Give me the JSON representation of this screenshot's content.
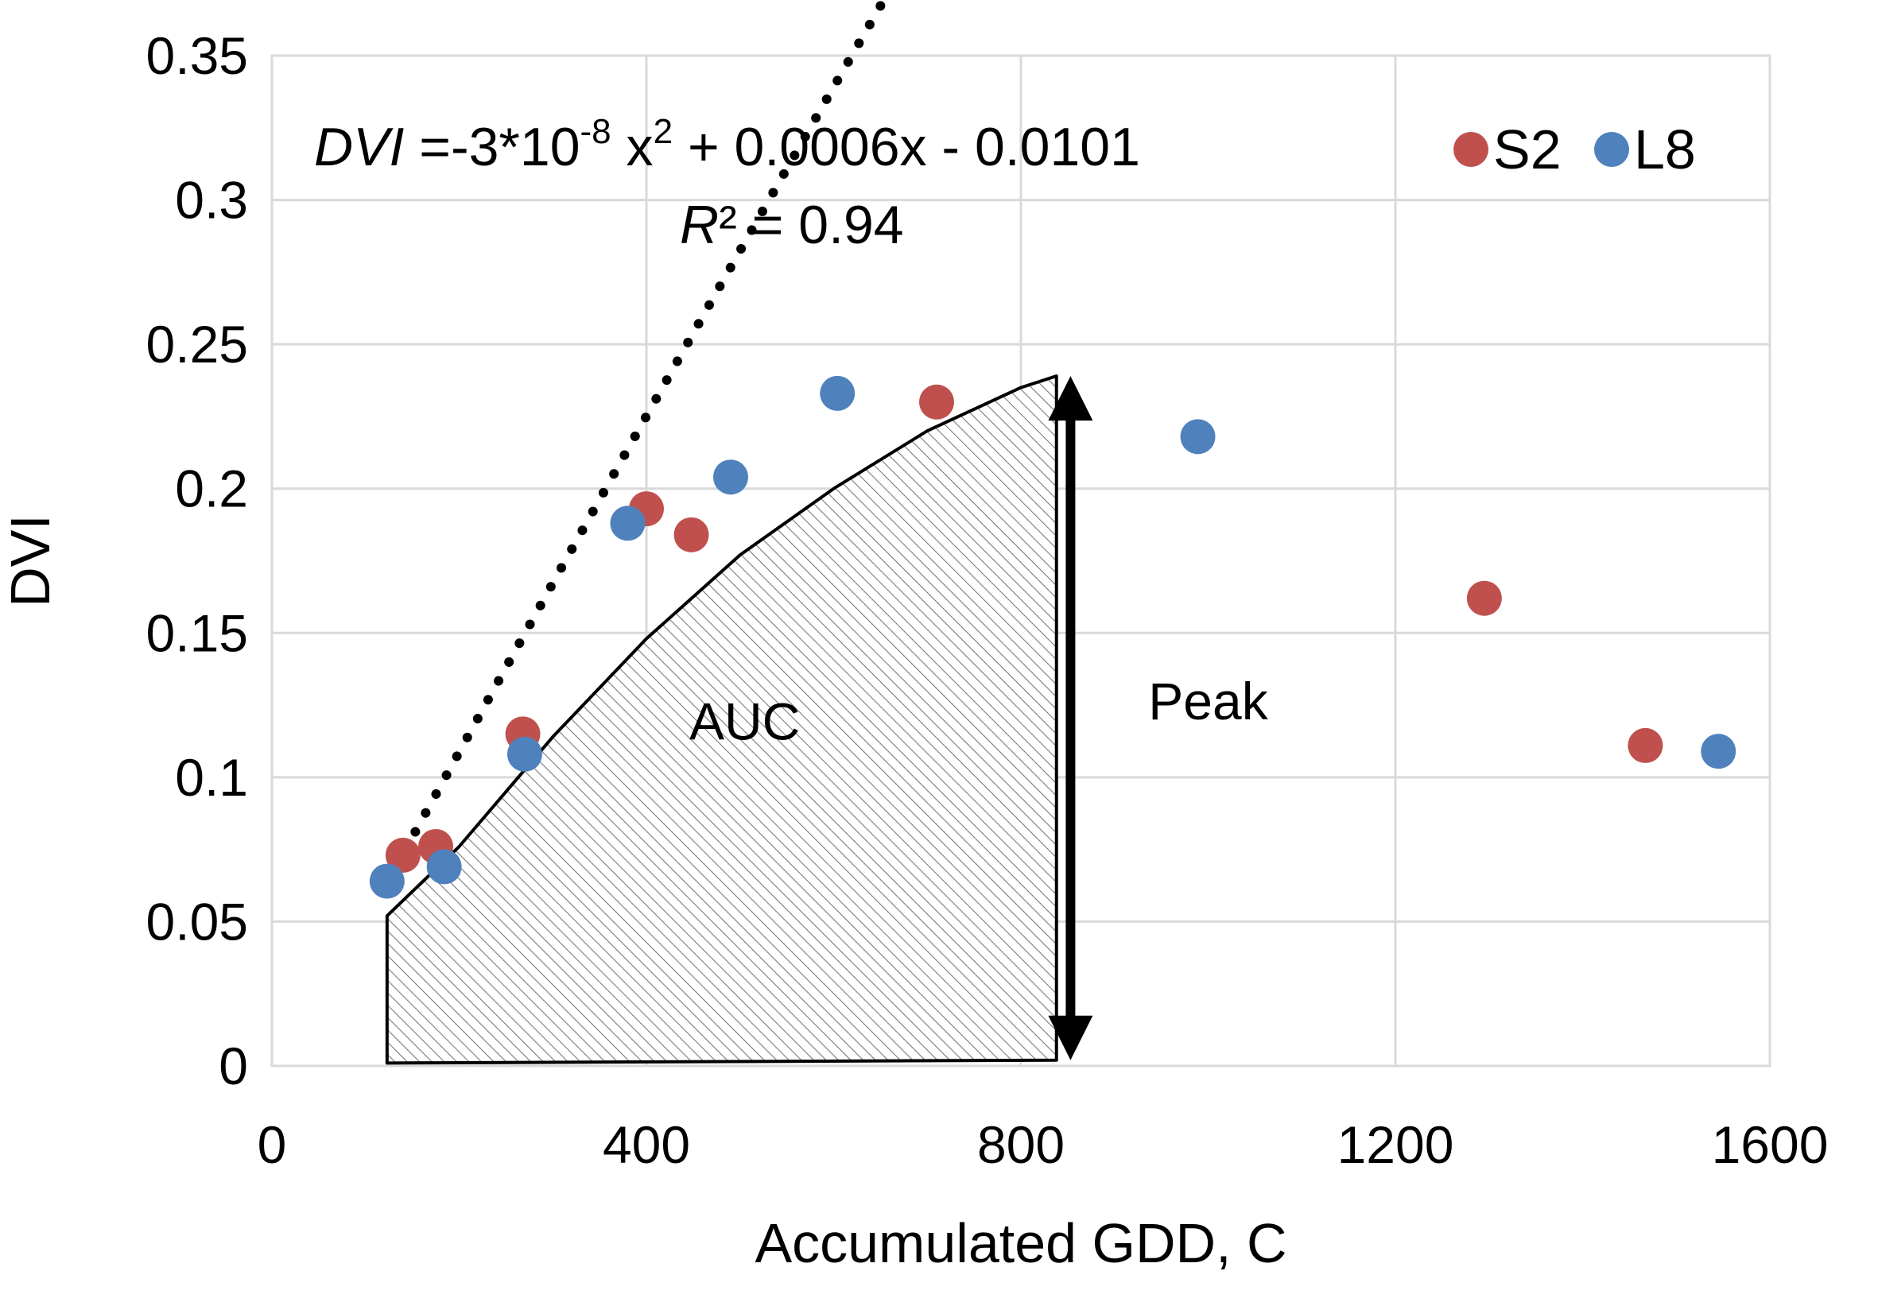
{
  "chart_data": {
    "type": "scatter",
    "title": "",
    "xlabel": "Accumulated GDD, C",
    "ylabel": "DVI",
    "xlim": [
      0,
      1600
    ],
    "ylim": [
      0,
      0.35
    ],
    "xticks": [
      0,
      400,
      800,
      1200,
      1600
    ],
    "xtick_labels": [
      "0",
      "400",
      "800",
      "1200",
      "1600"
    ],
    "yticks": [
      0,
      0.05,
      0.1,
      0.15,
      0.2,
      0.25,
      0.3,
      0.35
    ],
    "ytick_labels": [
      "0",
      "0.05",
      "0.1",
      "0.15",
      "0.2",
      "0.25",
      "0.3",
      "0.35"
    ],
    "grid": true,
    "legend_position": "top-right",
    "series": [
      {
        "name": "S2",
        "color": "#c0504d",
        "points": [
          {
            "x": 140,
            "y": 0.073
          },
          {
            "x": 175,
            "y": 0.076
          },
          {
            "x": 268,
            "y": 0.115
          },
          {
            "x": 400,
            "y": 0.193
          },
          {
            "x": 448,
            "y": 0.184
          },
          {
            "x": 710,
            "y": 0.23
          },
          {
            "x": 1295,
            "y": 0.162
          },
          {
            "x": 1467,
            "y": 0.111
          }
        ]
      },
      {
        "name": "L8",
        "color": "#4f81bd",
        "points": [
          {
            "x": 123,
            "y": 0.064
          },
          {
            "x": 184,
            "y": 0.069
          },
          {
            "x": 270,
            "y": 0.108
          },
          {
            "x": 380,
            "y": 0.188
          },
          {
            "x": 490,
            "y": 0.204
          },
          {
            "x": 604,
            "y": 0.233
          },
          {
            "x": 989,
            "y": 0.218
          },
          {
            "x": 1545,
            "y": 0.109
          }
        ]
      }
    ],
    "trendline": {
      "type": "polynomial",
      "style": "dotted",
      "coefficients": {
        "a": -3e-08,
        "b": 0.0006,
        "c": -0.0101
      },
      "x_range": [
        120,
        1545
      ]
    },
    "equation": {
      "lhs": "DVI",
      "rhs_main": " =-3*10",
      "exponent_1": "-8",
      "x_term": " x",
      "exponent_2": "2",
      "rhs_tail": " + 0.0006x -  0.0101",
      "r2_symbol": "R",
      "r2_text": "² = 0.94"
    },
    "auc_region": {
      "label": "AUC",
      "x_start": 123,
      "x_end": 838,
      "curve_points": [
        {
          "x": 123,
          "y": 0.052
        },
        {
          "x": 200,
          "y": 0.076
        },
        {
          "x": 300,
          "y": 0.114
        },
        {
          "x": 400,
          "y": 0.148
        },
        {
          "x": 500,
          "y": 0.177
        },
        {
          "x": 600,
          "y": 0.2
        },
        {
          "x": 700,
          "y": 0.22
        },
        {
          "x": 800,
          "y": 0.235
        },
        {
          "x": 838,
          "y": 0.239
        }
      ],
      "pattern": "diagonal-hatch"
    },
    "peak_arrow": {
      "label": "Peak",
      "x": 853,
      "y_top": 0.239,
      "y_bottom": 0.002
    }
  }
}
